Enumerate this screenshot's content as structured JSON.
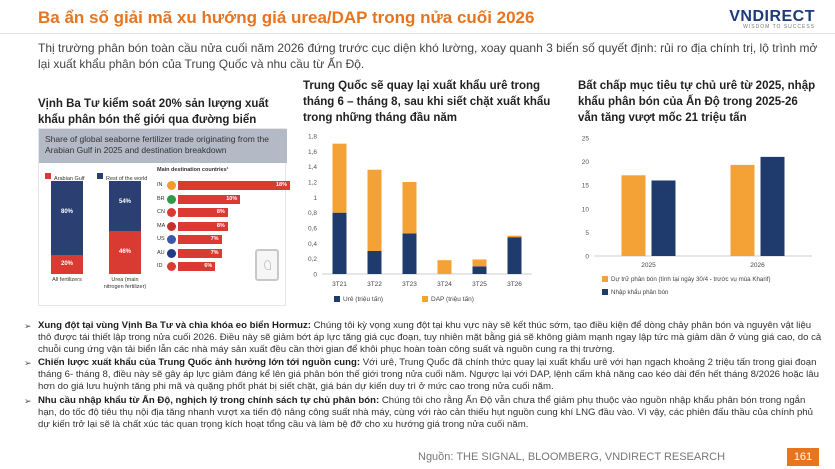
{
  "header": {
    "title": "Ba ẩn số giải mã xu hướng giá urea/DAP trong nửa cuối 2026",
    "logo": "VNDIRECT",
    "logo_tagline": "WISDOM TO SUCCESS"
  },
  "intro": "Thị trường phân bón toàn cầu nửa cuối năm 2026 đứng trước cục diện khó lường, xoay quanh 3 biến số quyết định: rủi ro địa chính trị, lộ trình mở lại xuất khẩu phân bón của Trung Quốc và nhu cầu từ Ấn Độ.",
  "panel1": {
    "title": "Vịnh Ba Tư kiểm soát 20% sản lượng xuất khẩu phân bón thế giới qua đường biển",
    "infographic": {
      "heading": "Share of global seaborne fertilizer trade originating from the Arabian Gulf in 2025 and destination breakdown",
      "legend": [
        "Arabian Gulf",
        "Rest of the world"
      ],
      "stacks": [
        {
          "label": "All fertilizers",
          "gulf": "20%",
          "rest": "80%",
          "gulf_share": 20
        },
        {
          "label": "Urea (main nitrogen fertilizer)",
          "gulf": "46%",
          "rest": "54%",
          "gulf_share": 46
        }
      ],
      "dest_heading": "Main destination countries¹",
      "destinations": [
        {
          "code": "IN",
          "value": "18%",
          "v": 18,
          "color": "#f39a2b"
        },
        {
          "code": "BR",
          "value": "10%",
          "v": 10,
          "color": "#2f9a47"
        },
        {
          "code": "CN",
          "value": "8%",
          "v": 8,
          "color": "#d93a32"
        },
        {
          "code": "MA",
          "value": "8%",
          "v": 8,
          "color": "#c4322b"
        },
        {
          "code": "US",
          "value": "7%",
          "v": 7,
          "color": "#3a56a8"
        },
        {
          "code": "AU",
          "value": "7%",
          "v": 7,
          "color": "#1f3b87"
        },
        {
          "code": "ID",
          "value": "6%",
          "v": 6,
          "color": "#d93a32"
        }
      ]
    }
  },
  "panel2": {
    "title": "Trung Quốc sẽ quay lại xuất khẩu urê trong tháng 6 – tháng 8, sau khi siết chặt xuất khẩu trong những tháng đầu năm"
  },
  "panel3": {
    "title": "Bất chấp mục tiêu tự chủ urê từ 2025, nhập khẩu phân bón của Ấn Độ trong 2025-26 vẫn tăng vượt mốc 21 triệu tấn"
  },
  "chart_data": [
    {
      "type": "bar",
      "stacked": true,
      "categories": [
        "3T21",
        "3T22",
        "3T23",
        "3T24",
        "3T25",
        "3T26"
      ],
      "series": [
        {
          "name": "Urê (triệu tấn)",
          "color": "#1f3b6e",
          "values": [
            0.8,
            0.3,
            0.53,
            0.0,
            0.1,
            0.48
          ]
        },
        {
          "name": "DAP (triệu tấn)",
          "color": "#f4a236",
          "values": [
            0.9,
            1.06,
            0.67,
            0.18,
            0.09,
            0.02
          ]
        }
      ],
      "ylim": [
        0,
        1.8
      ],
      "yticks": [
        "0",
        "0,2",
        "0,4",
        "0,6",
        "0,8",
        "1",
        "1,2",
        "1,4",
        "1,6",
        "1,8"
      ],
      "legend": "bottom"
    },
    {
      "type": "bar",
      "categories": [
        "2025",
        "2026"
      ],
      "series": [
        {
          "name": "Dự trữ phân bón (tính tại ngày 30/4 - trước vụ mùa Kharif)",
          "color": "#f4a236",
          "values": [
            17.1,
            19.3
          ]
        },
        {
          "name": "Nhập khẩu phân bón",
          "color": "#1f3b6e",
          "values": [
            16.0,
            21.0
          ]
        }
      ],
      "ylim": [
        0,
        25
      ],
      "yticks": [
        "0",
        "5",
        "10",
        "15",
        "20",
        "25"
      ],
      "legend": "bottom"
    }
  ],
  "bullets": [
    {
      "head": "Xung đột tại vùng Vịnh Ba Tư và chìa khóa eo biển Hormuz:",
      "text": " Chúng tôi kỳ vọng xung đột tại khu vực này sẽ kết thúc sớm, tạo điều kiện để dòng chảy phân bón và nguyên vật liệu thô được tái thiết lập trong nửa cuối 2026. Điều này sẽ giảm bớt áp lực tăng giá cục đoạn, tuy nhiên mặt bằng giá sẽ không giảm mạnh ngay lập tức mà giảm dần ở vùng giá cao, do cả chuỗi cung ứng vận tải biển lẫn các nhà máy sản xuất đều cần thời gian để khôi phục hoàn toàn công suất và nguồn cung ra thị trường."
    },
    {
      "head": "Chiến lược xuất khẩu của Trung Quốc ảnh hưởng lớn tới nguồn cung:",
      "text": " Với urê, Trung Quốc đã chính thức quay lại xuất khẩu urê với hạn ngạch khoảng 2 triệu tấn trong giai đoạn tháng 6- tháng 8, điều này sẽ gây áp lực giảm đáng kể lên giá phân bón thế giới trong nửa cuối năm. Ngược lại với DAP, lệnh cấm khả năng cao kéo dài đến hết tháng 8/2026 hoặc lâu hơn do giá lưu huỳnh tăng phi mã và quặng phốt phát bị siết chặt, giá bán dự kiến duy trì ở mức cao trong nửa cuối năm."
    },
    {
      "head": "Nhu cầu nhập khẩu từ Ấn Độ, nghịch lý trong chính sách tự chủ phân bón:",
      "text": " Chúng tôi cho rằng Ấn Độ vẫn chưa thể giảm phụ thuộc vào nguồn nhập khẩu phân bón trong ngắn hạn, do tốc độ tiêu thụ nội địa tăng nhanh vượt xa tiến độ nâng công suất nhà máy, cùng với rào cản thiếu hụt nguồn cung khí LNG đầu vào. Vì vậy, các phiên đấu thầu của chính phủ dự kiến trở lại sẽ là chất xúc tác quan trọng kích hoạt tổng cầu và làm bệ đỡ cho xu hướng giá trong nửa cuối năm."
    }
  ],
  "footer": {
    "source": "Nguồn: THE SIGNAL, BLOOMBERG, VNDIRECT RESEARCH",
    "page_number": "161"
  }
}
